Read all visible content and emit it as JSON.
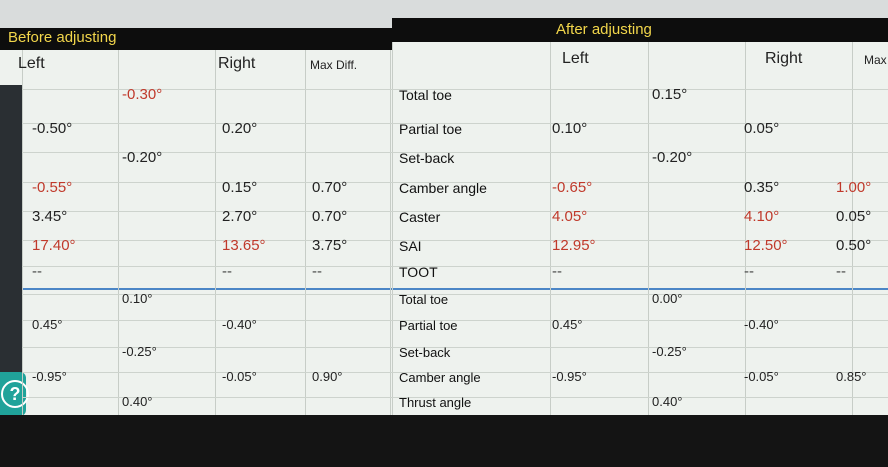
{
  "help_icon": "?",
  "before": {
    "title": "Before adjusting",
    "headers": {
      "left": "Left",
      "right": "Right",
      "diff": "Max Diff."
    },
    "front_rows": [
      {
        "center": {
          "text": "-0.30°",
          "color": "#c0392b"
        }
      },
      {
        "left": {
          "text": "-0.50°",
          "color": "#222"
        },
        "right": {
          "text": "0.20°",
          "color": "#222"
        }
      },
      {
        "center": {
          "text": "-0.20°",
          "color": "#222"
        }
      },
      {
        "left": {
          "text": "-0.55°",
          "color": "#c0392b"
        },
        "right": {
          "text": "0.15°",
          "color": "#222"
        },
        "diff": {
          "text": "0.70°",
          "color": "#222"
        }
      },
      {
        "left": {
          "text": "3.45°",
          "color": "#222"
        },
        "right": {
          "text": "2.70°",
          "color": "#222"
        },
        "diff": {
          "text": "0.70°",
          "color": "#222"
        }
      },
      {
        "left": {
          "text": "17.40°",
          "color": "#c0392b"
        },
        "right": {
          "text": "13.65°",
          "color": "#c0392b"
        },
        "diff": {
          "text": "3.75°",
          "color": "#222"
        }
      },
      {
        "left": {
          "text": "--",
          "color": "#444"
        },
        "right": {
          "text": "--",
          "color": "#444"
        },
        "diff": {
          "text": "--",
          "color": "#444"
        }
      }
    ],
    "rear_rows": [
      {
        "center": {
          "text": "0.10°",
          "color": "#222"
        }
      },
      {
        "left": {
          "text": "0.45°",
          "color": "#222"
        },
        "right": {
          "text": "-0.40°",
          "color": "#222"
        }
      },
      {
        "center": {
          "text": "-0.25°",
          "color": "#222"
        }
      },
      {
        "left": {
          "text": "-0.95°",
          "color": "#222"
        },
        "right": {
          "text": "-0.05°",
          "color": "#222"
        },
        "diff": {
          "text": "0.90°",
          "color": "#222"
        }
      },
      {
        "center": {
          "text": "0.40°",
          "color": "#222"
        }
      }
    ]
  },
  "after": {
    "title": "After adjusting",
    "headers": {
      "left": "Left",
      "right": "Right",
      "diff": "Max"
    },
    "front_rows": [
      {
        "label": "Total toe",
        "center": {
          "text": "0.15°",
          "color": "#222"
        }
      },
      {
        "label": "Partial toe",
        "left": {
          "text": "0.10°",
          "color": "#222"
        },
        "right": {
          "text": "0.05°",
          "color": "#222"
        }
      },
      {
        "label": "Set-back",
        "center": {
          "text": "-0.20°",
          "color": "#222"
        }
      },
      {
        "label": "Camber angle",
        "left": {
          "text": "-0.65°",
          "color": "#c0392b"
        },
        "right": {
          "text": "0.35°",
          "color": "#222"
        },
        "diff": {
          "text": "1.00°",
          "color": "#c0392b"
        }
      },
      {
        "label": "Caster",
        "left": {
          "text": "4.05°",
          "color": "#c0392b"
        },
        "right": {
          "text": "4.10°",
          "color": "#c0392b"
        },
        "diff": {
          "text": "0.05°",
          "color": "#222"
        }
      },
      {
        "label": "SAI",
        "left": {
          "text": "12.95°",
          "color": "#c0392b"
        },
        "right": {
          "text": "12.50°",
          "color": "#c0392b"
        },
        "diff": {
          "text": "0.50°",
          "color": "#222"
        }
      },
      {
        "label": "TOOT",
        "left": {
          "text": "--",
          "color": "#444"
        },
        "right": {
          "text": "--",
          "color": "#444"
        },
        "diff": {
          "text": "--",
          "color": "#444"
        }
      }
    ],
    "rear_rows": [
      {
        "label": "Total toe",
        "center": {
          "text": "0.00°",
          "color": "#222"
        }
      },
      {
        "label": "Partial toe",
        "left": {
          "text": "0.45°",
          "color": "#222"
        },
        "right": {
          "text": "-0.40°",
          "color": "#222"
        }
      },
      {
        "label": "Set-back",
        "center": {
          "text": "-0.25°",
          "color": "#222"
        }
      },
      {
        "label": "Camber angle",
        "left": {
          "text": "-0.95°",
          "color": "#222"
        },
        "right": {
          "text": "-0.05°",
          "color": "#222"
        },
        "diff": {
          "text": "0.85°",
          "color": "#222"
        }
      },
      {
        "label": "Thrust angle",
        "center": {
          "text": "0.40°",
          "color": "#222"
        }
      }
    ]
  }
}
